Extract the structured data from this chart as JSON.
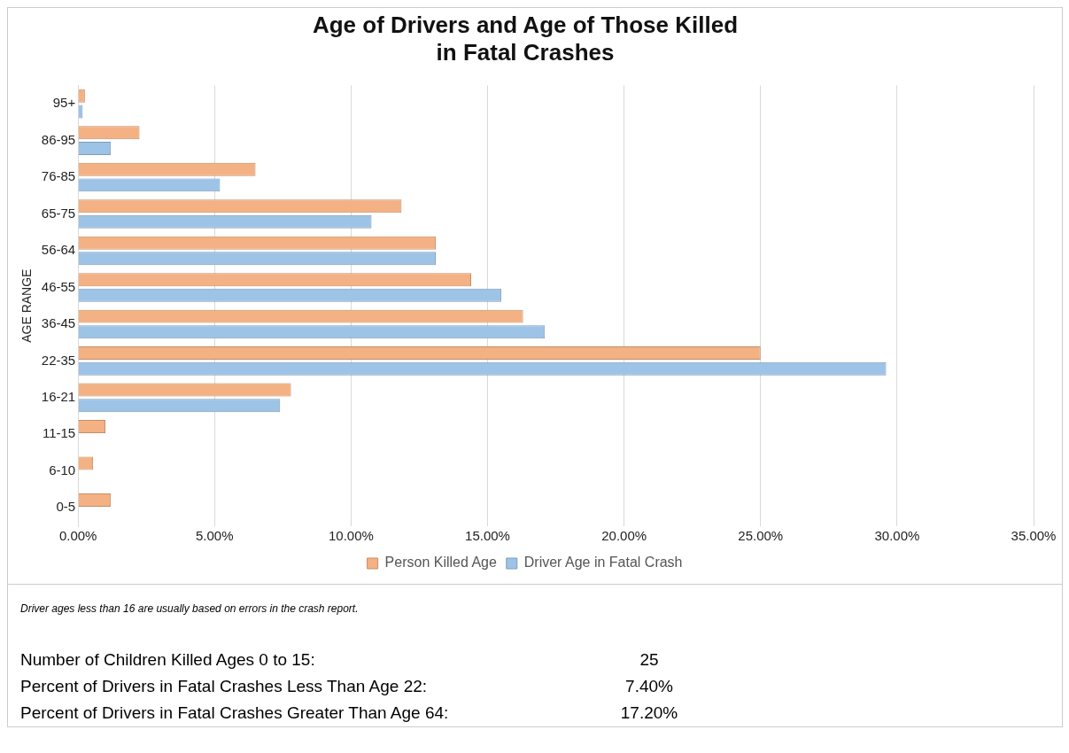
{
  "chart_data": {
    "type": "bar",
    "orientation": "horizontal",
    "title": "Age of Drivers and Age of Those Killed\nin Fatal Crashes",
    "ylabel": "AGE RANGE",
    "categories": [
      "95+",
      "86-95",
      "76-85",
      "65-75",
      "56-64",
      "46-55",
      "36-45",
      "22-35",
      "16-21",
      "11-15",
      "6-10",
      "0-5"
    ],
    "series": [
      {
        "name": "Person Killed Age",
        "color": "#f4b183",
        "values": [
          0.25,
          2.25,
          6.5,
          11.85,
          13.1,
          14.4,
          16.3,
          25.0,
          7.8,
          1.0,
          0.55,
          1.2
        ]
      },
      {
        "name": "Driver Age in Fatal Crash",
        "color": "#9dc3e6",
        "values": [
          0.17,
          1.2,
          5.2,
          10.75,
          13.1,
          15.5,
          17.1,
          29.6,
          7.4,
          null,
          null,
          null
        ]
      }
    ],
    "xlim": [
      0,
      35
    ],
    "xticks": [
      {
        "value": 0,
        "label": "0.00%"
      },
      {
        "value": 5,
        "label": "5.00%"
      },
      {
        "value": 10,
        "label": "10.00%"
      },
      {
        "value": 15,
        "label": "15.00%"
      },
      {
        "value": 20,
        "label": "20.00%"
      },
      {
        "value": 25,
        "label": "25.00%"
      },
      {
        "value": 30,
        "label": "30.00%"
      },
      {
        "value": 35,
        "label": "35.00%"
      }
    ],
    "grid": "x",
    "legend": "bottom",
    "annotations": [
      "Driver ages less than 16 are usually based on errors in the crash report.",
      "Number of Children Killed Ages 0 to 15:",
      "25",
      "Percent of Drivers in Fatal Crashes Less Than Age 22:",
      "7.40%",
      "Percent of Drivers in Fatal Crashes Greater Than Age 64:",
      "17.20%"
    ]
  }
}
